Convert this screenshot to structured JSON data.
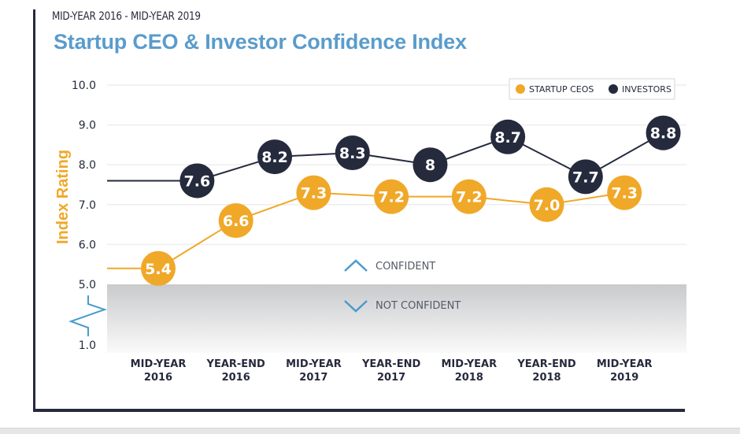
{
  "header": {
    "subtitle": "MID-YEAR 2016 - MID-YEAR 2019",
    "title": "Startup CEO & Investor Confidence Index"
  },
  "colors": {
    "ceo": "#f0a829",
    "investor": "#262a3d",
    "title": "#5a9ccb",
    "zone_icon": "#4a9ccb",
    "grid": "#eeeeee"
  },
  "zones": {
    "confident_label": "CONFIDENT",
    "not_confident_label": "NOT CONFIDENT",
    "confident_icon": "chevron-up-icon",
    "not_confident_icon": "chevron-down-icon"
  },
  "chart_data": {
    "type": "line",
    "title": "Startup CEO & Investor Confidence Index",
    "subtitle": "MID-YEAR 2016 - MID-YEAR 2019",
    "xlabel": "",
    "ylabel": "Index Rating",
    "ylim": [
      1.0,
      10.0
    ],
    "y_axis_break": [
      1.0,
      5.0
    ],
    "yticks": [
      "10.0",
      "9.0",
      "8.0",
      "7.0",
      "6.0",
      "5.0",
      "1.0"
    ],
    "grid": true,
    "legend_position": "top-right",
    "categories": [
      [
        "MID-YEAR",
        "2016"
      ],
      [
        "YEAR-END",
        "2016"
      ],
      [
        "MID-YEAR",
        "2017"
      ],
      [
        "YEAR-END",
        "2017"
      ],
      [
        "MID-YEAR",
        "2018"
      ],
      [
        "YEAR-END",
        "2018"
      ],
      [
        "MID-YEAR",
        "2019"
      ]
    ],
    "series": [
      {
        "name": "STARTUP CEOS",
        "key": "ceo",
        "values": [
          5.4,
          6.6,
          7.3,
          7.2,
          7.2,
          7.0,
          7.3
        ],
        "labels": [
          "5.4",
          "6.6",
          "7.3",
          "7.2",
          "7.2",
          "7.0",
          "7.3"
        ],
        "x_offset": 0
      },
      {
        "name": "INVESTORS",
        "key": "investor",
        "values": [
          7.6,
          8.2,
          8.3,
          8.0,
          8.7,
          7.7,
          8.8
        ],
        "labels": [
          "7.6",
          "8.2",
          "8.3",
          "8",
          "8.7",
          "7.7",
          "8.8"
        ],
        "x_offset": 0.5
      }
    ],
    "annotations": [
      "CONFIDENT",
      "NOT CONFIDENT"
    ]
  }
}
